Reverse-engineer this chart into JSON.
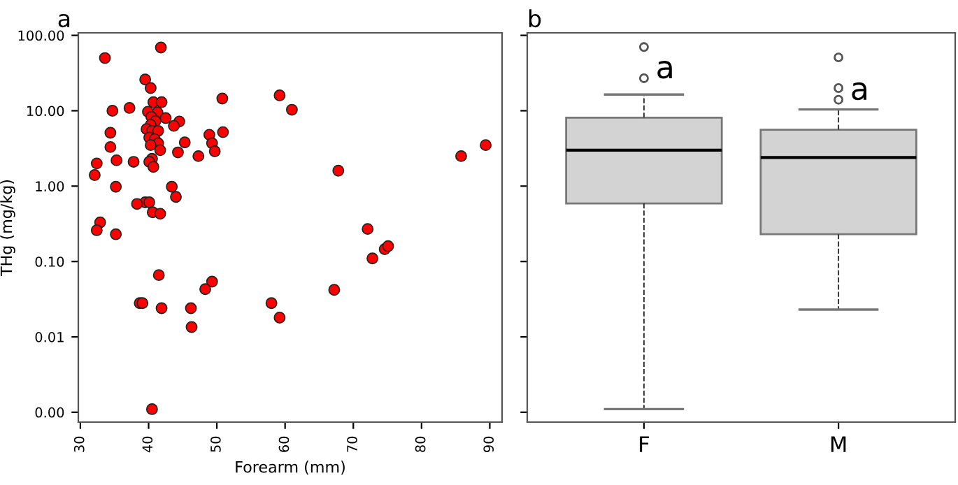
{
  "chart_data": [
    {
      "type": "scatter",
      "title": "a",
      "xlabel": "Forearm (mm)",
      "ylabel": "THg (mg/kg)",
      "log": "y",
      "grid": false,
      "marker": "circle",
      "xlim": [
        29.7,
        91.8
      ],
      "xticks": [
        30,
        40,
        50,
        60,
        70,
        80,
        90
      ],
      "ylim": [
        0.00074,
        108
      ],
      "yticks": [
        {
          "value": 100,
          "label": "100.00"
        },
        {
          "value": 10,
          "label": "10.00"
        },
        {
          "value": 1,
          "label": "1.00"
        },
        {
          "value": 0.1,
          "label": "0.10"
        },
        {
          "value": 0.01,
          "label": "0.01"
        },
        {
          "value": 0.001,
          "label": "0.00"
        }
      ],
      "series": [
        {
          "color": "#ff0000",
          "x": [
            41.8,
            33.6,
            39.5,
            40.3,
            40.7,
            41.9,
            34.7,
            37.2,
            39.9,
            41.3,
            40.4,
            42.5,
            41.0,
            40.3,
            44.5,
            43.7,
            39.7,
            40.5,
            41.4,
            34.4,
            50.8,
            50.9,
            48.9,
            40.1,
            40.9,
            45.3,
            49.3,
            41.4,
            40.3,
            34.4,
            41.7,
            49.7,
            44.3,
            47.3,
            40.5,
            40.1,
            35.3,
            37.8,
            32.4,
            40.7,
            32.1,
            35.2,
            43.4,
            44.0,
            39.5,
            40.1,
            38.3,
            40.6,
            41.7,
            32.9,
            32.4,
            35.2,
            41.5,
            49.3,
            48.3,
            38.7,
            39.1,
            41.9,
            46.2,
            46.3,
            40.5,
            58.0,
            59.2,
            59.2,
            61.0,
            67.8,
            85.8,
            89.4,
            72.1,
            74.6,
            75.1,
            72.8,
            67.2
          ],
          "values": [
            69,
            50,
            26,
            20,
            13,
            13,
            10,
            10.9,
            9.7,
            9.5,
            8.3,
            8,
            7.3,
            6.5,
            7.2,
            6.3,
            5.7,
            5.4,
            5.4,
            5.1,
            14.5,
            5.2,
            4.8,
            4.4,
            4.2,
            3.8,
            3.7,
            3.7,
            3.5,
            3.3,
            3.0,
            2.9,
            2.8,
            2.5,
            2.3,
            2.1,
            2.2,
            2.1,
            2.0,
            1.8,
            1.4,
            0.98,
            0.98,
            0.72,
            0.61,
            0.61,
            0.58,
            0.45,
            0.43,
            0.33,
            0.26,
            0.23,
            0.066,
            0.054,
            0.043,
            0.028,
            0.028,
            0.024,
            0.024,
            0.0135,
            0.0011,
            0.028,
            0.018,
            16,
            10.3,
            1.6,
            2.5,
            3.5,
            0.27,
            0.146,
            0.16,
            0.11,
            0.042
          ]
        }
      ]
    },
    {
      "type": "box",
      "title": "b",
      "log": "y",
      "grid": false,
      "tick_labels": "x",
      "categories": [
        "F",
        "M"
      ],
      "ylim": [
        0.00074,
        108
      ],
      "yticks": [
        {
          "value": 100,
          "label": null
        },
        {
          "value": 10,
          "label": null
        },
        {
          "value": 1,
          "label": null
        },
        {
          "value": 0.1,
          "label": null
        },
        {
          "value": 0.01,
          "label": null
        },
        {
          "value": 0.001,
          "label": null
        }
      ],
      "series": [
        {
          "color": "#d3d3d3",
          "boxes": [
            {
              "low": 0.0011,
              "q1": 0.59,
              "median": 3.0,
              "q3": 8.1,
              "high": 16.4,
              "outliers": [
                70,
                27
              ]
            },
            {
              "low": 0.023,
              "q1": 0.23,
              "median": 2.4,
              "q3": 5.6,
              "high": 10.4,
              "outliers": [
                51,
                20,
                14
              ]
            }
          ]
        }
      ],
      "annotations": [
        "a",
        "a"
      ]
    }
  ]
}
